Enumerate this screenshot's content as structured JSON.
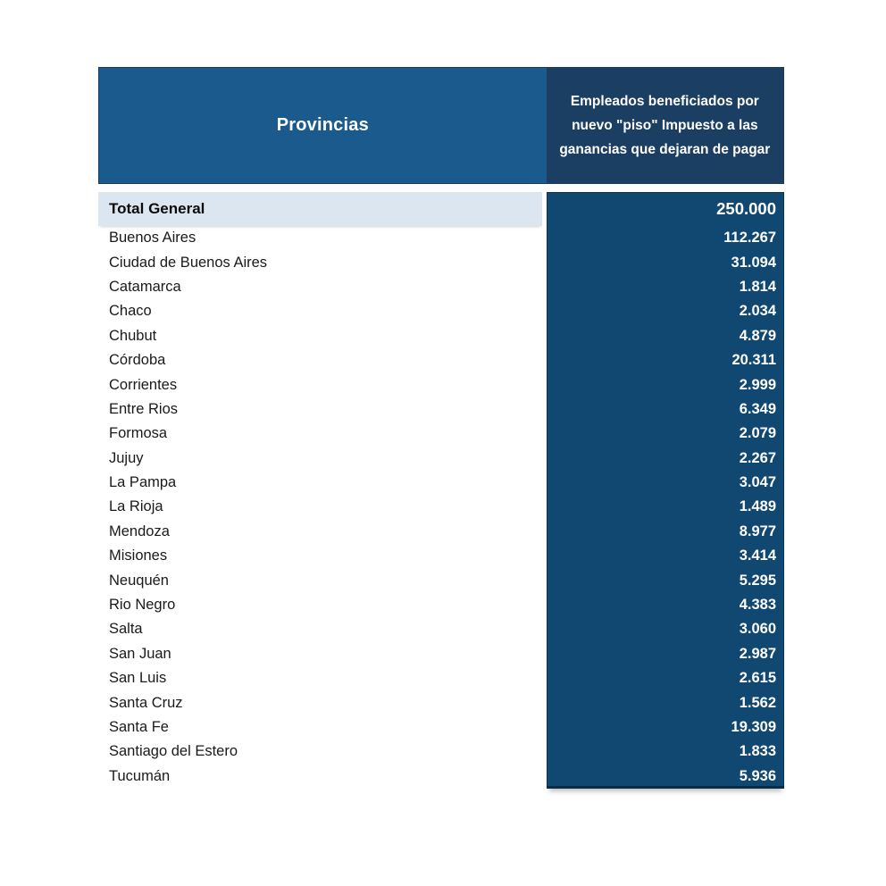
{
  "table": {
    "header": {
      "provincias": "Provincias",
      "beneficiados": "Empleados beneficiados por nuevo \"piso\" Impuesto a las ganancias que dejaran de pagar"
    },
    "total": {
      "label": "Total General",
      "value": "250.000"
    },
    "rows": [
      {
        "province": "Buenos Aires",
        "value": "112.267"
      },
      {
        "province": "Ciudad de Buenos Aires",
        "value": "31.094"
      },
      {
        "province": "Catamarca",
        "value": "1.814"
      },
      {
        "province": "Chaco",
        "value": "2.034"
      },
      {
        "province": "Chubut",
        "value": "4.879"
      },
      {
        "province": "Córdoba",
        "value": "20.311"
      },
      {
        "province": "Corrientes",
        "value": "2.999"
      },
      {
        "province": "Entre Rios",
        "value": "6.349"
      },
      {
        "province": "Formosa",
        "value": "2.079"
      },
      {
        "province": "Jujuy",
        "value": "2.267"
      },
      {
        "province": "La Pampa",
        "value": "3.047"
      },
      {
        "province": "La Rioja",
        "value": "1.489"
      },
      {
        "province": "Mendoza",
        "value": "8.977"
      },
      {
        "province": "Misiones",
        "value": "3.414"
      },
      {
        "province": "Neuquén",
        "value": "5.295"
      },
      {
        "province": "Rio Negro",
        "value": "4.383"
      },
      {
        "province": "Salta",
        "value": "3.060"
      },
      {
        "province": "San Juan",
        "value": "2.987"
      },
      {
        "province": "San Luis",
        "value": "2.615"
      },
      {
        "province": "Santa Cruz",
        "value": "1.562"
      },
      {
        "province": "Santa Fe",
        "value": "19.309"
      },
      {
        "province": "Santiago del Estero",
        "value": "1.833"
      },
      {
        "province": "Tucumán",
        "value": "5.936"
      }
    ]
  },
  "colors": {
    "header_left_bg": "#1a5a8c",
    "header_right_bg": "#1b3e63",
    "total_left_bg": "#dce6f1",
    "value_col_bg": "#114872",
    "value_text": "#ffffff",
    "label_text": "#1a1a1a",
    "total_label_text": "#0b0b0b",
    "table_border": "#1c3b5e",
    "value_col_bottom_border": "#0a2c49"
  },
  "chart_data": {
    "type": "table",
    "columns": [
      "Provincias",
      "Empleados beneficiados por nuevo \"piso\" Impuesto a las ganancias que dejaran de pagar"
    ],
    "total": {
      "label": "Total General",
      "value": 250000
    },
    "rows": [
      [
        "Buenos Aires",
        112267
      ],
      [
        "Ciudad de Buenos Aires",
        31094
      ],
      [
        "Catamarca",
        1814
      ],
      [
        "Chaco",
        2034
      ],
      [
        "Chubut",
        4879
      ],
      [
        "Córdoba",
        20311
      ],
      [
        "Corrientes",
        2999
      ],
      [
        "Entre Rios",
        6349
      ],
      [
        "Formosa",
        2079
      ],
      [
        "Jujuy",
        2267
      ],
      [
        "La Pampa",
        3047
      ],
      [
        "La Rioja",
        1489
      ],
      [
        "Mendoza",
        8977
      ],
      [
        "Misiones",
        3414
      ],
      [
        "Neuquén",
        5295
      ],
      [
        "Rio Negro",
        4383
      ],
      [
        "Salta",
        3060
      ],
      [
        "San Juan",
        2987
      ],
      [
        "San Luis",
        2615
      ],
      [
        "Santa Cruz",
        1562
      ],
      [
        "Santa Fe",
        19309
      ],
      [
        "Santiago del Estero",
        1833
      ],
      [
        "Tucumán",
        5936
      ]
    ],
    "number_format": "thousands separator '.'",
    "legend_position": "none",
    "grid": false
  }
}
